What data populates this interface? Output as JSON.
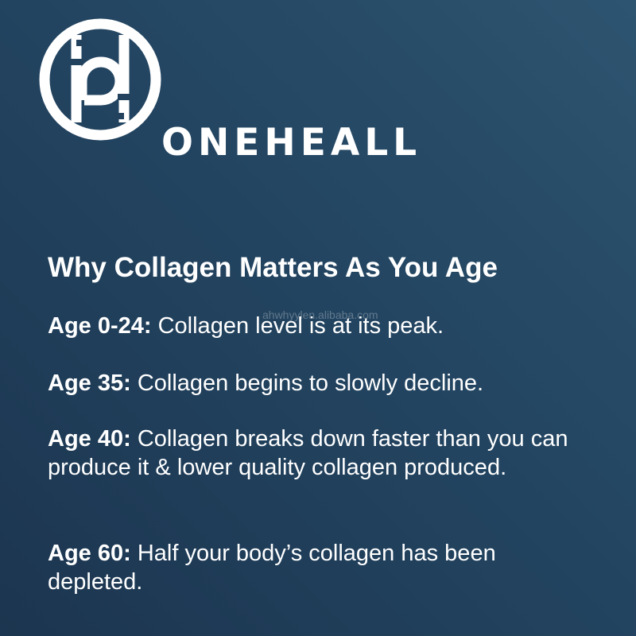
{
  "brand": {
    "name": "ONEHEALL"
  },
  "heading": "Why Collagen Matters As You Age",
  "items": [
    {
      "label": "Age 0-24:",
      "text": " Collagen level is at its peak."
    },
    {
      "label": "Age 35:",
      "text": " Collagen begins to slowly decline."
    },
    {
      "label": "Age 40:",
      "text": " Collagen breaks down faster than you can produce it & lower quality collagen produced."
    },
    {
      "label": "Age 60:",
      "text": " Half your body’s collagen has been depleted."
    }
  ],
  "watermark": "ahwhyylen.alibaba.com",
  "colors": {
    "background_dark": "#1c3550",
    "background_light": "#2d5470",
    "text": "#ffffff"
  }
}
